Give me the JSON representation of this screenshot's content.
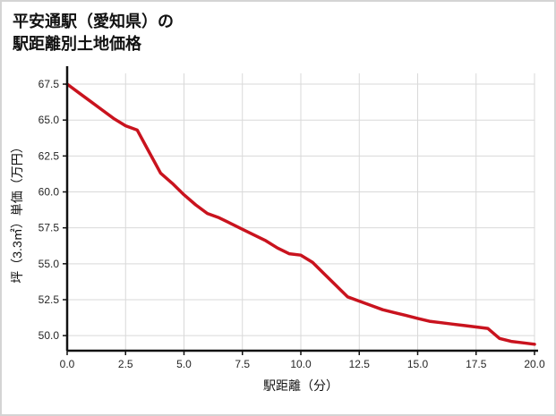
{
  "title": {
    "line1": "平安通駅（愛知県）の",
    "line2": "駅距離別土地価格"
  },
  "chart_data": {
    "type": "line",
    "title": "平安通駅（愛知県）の駅距離別土地価格",
    "xlabel": "駅距離（分）",
    "ylabel": "坪（3.3㎡）単価（万円）",
    "xlim": [
      0,
      20
    ],
    "ylim": [
      48.95,
      68.25
    ],
    "x_ticks": [
      0.0,
      2.5,
      5.0,
      7.5,
      10.0,
      12.5,
      15.0,
      17.5,
      20.0
    ],
    "y_ticks": [
      50.0,
      52.5,
      55.0,
      57.5,
      60.0,
      62.5,
      65.0,
      67.5
    ],
    "grid": true,
    "legend": false,
    "series": [
      {
        "name": "坪単価",
        "x": [
          0,
          0.5,
          1,
          1.5,
          2,
          2.5,
          3,
          3.5,
          4,
          4.5,
          5,
          5.5,
          6,
          6.5,
          7,
          7.5,
          8,
          8.5,
          9,
          9.5,
          10,
          10.5,
          11,
          11.5,
          12,
          12.5,
          13,
          13.5,
          14,
          14.5,
          15,
          15.5,
          16,
          16.5,
          17,
          17.5,
          18,
          18.5,
          19,
          19.5,
          20
        ],
        "y": [
          67.5,
          66.9,
          66.3,
          65.7,
          65.1,
          64.6,
          64.3,
          62.8,
          61.3,
          60.6,
          59.8,
          59.1,
          58.5,
          58.2,
          57.8,
          57.4,
          57.0,
          56.6,
          56.1,
          55.7,
          55.6,
          55.1,
          54.3,
          53.5,
          52.7,
          52.4,
          52.1,
          51.8,
          51.6,
          51.4,
          51.2,
          51.0,
          50.9,
          50.8,
          50.7,
          50.6,
          50.5,
          49.8,
          49.6,
          49.5,
          49.4
        ]
      }
    ]
  },
  "colors": {
    "line": "#c9131e",
    "axis": "#111111",
    "grid": "#d9d9d9",
    "border": "#d4d4d4"
  }
}
